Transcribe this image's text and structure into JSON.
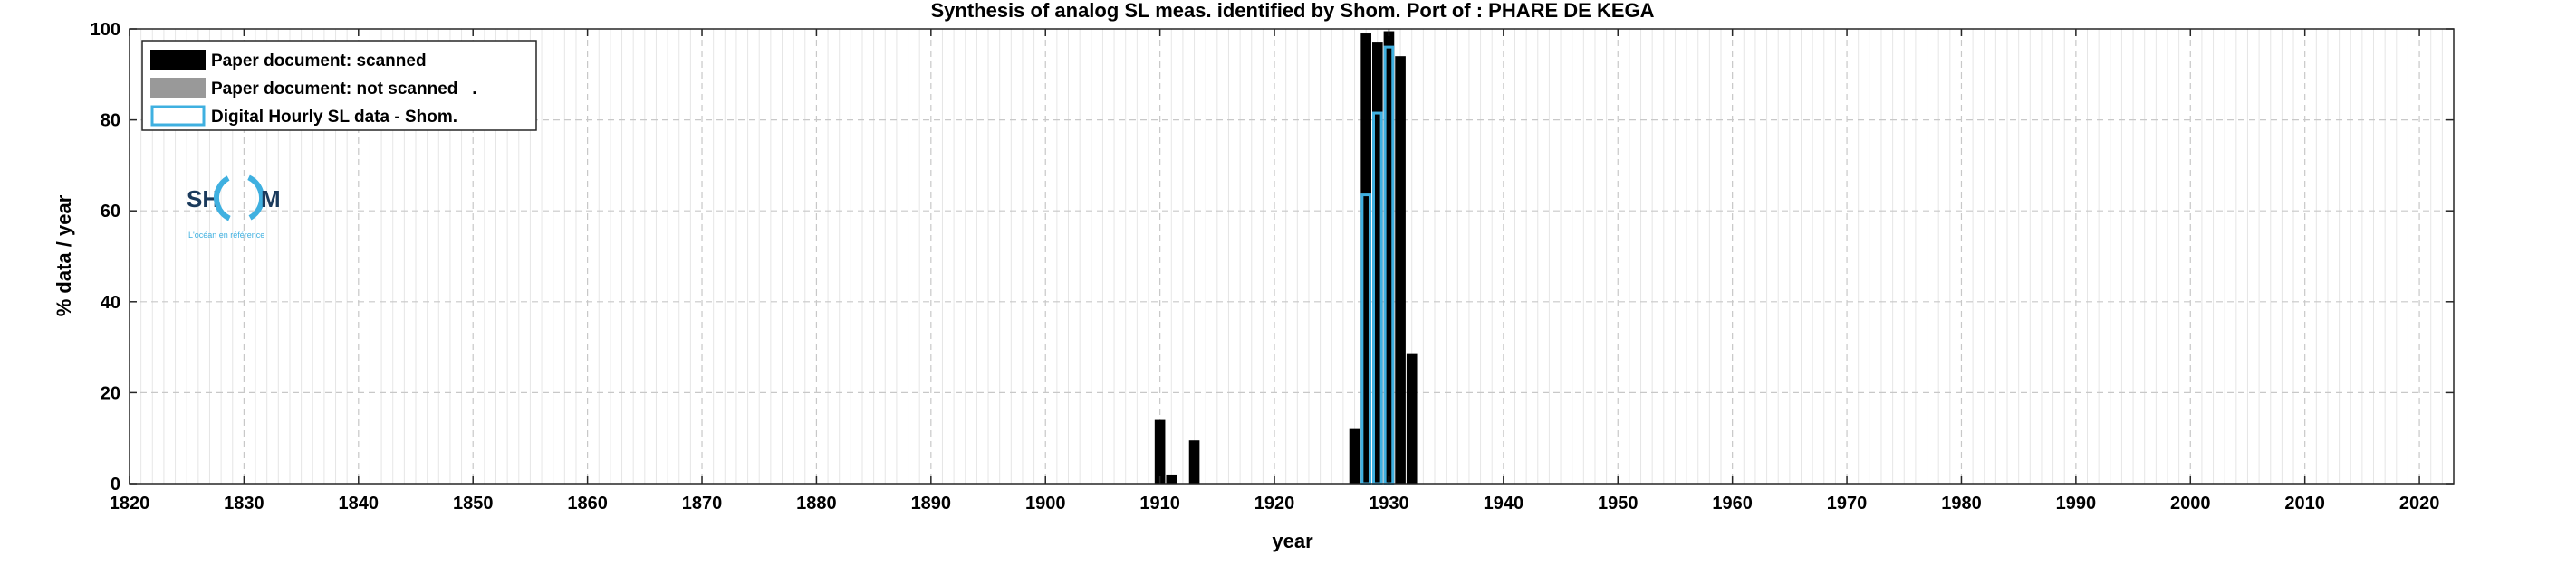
{
  "chart_data": {
    "type": "bar",
    "title": "Synthesis of analog SL meas. identified by Shom. Port of : PHARE DE KEGA",
    "xlabel": "year",
    "ylabel": "% data / year",
    "xlim": [
      1820,
      2023
    ],
    "ylim": [
      0,
      100
    ],
    "x_ticks": [
      1820,
      1830,
      1840,
      1850,
      1860,
      1870,
      1880,
      1890,
      1900,
      1910,
      1920,
      1930,
      1940,
      1950,
      1960,
      1970,
      1980,
      1990,
      2000,
      2010,
      2020
    ],
    "y_ticks": [
      0,
      20,
      40,
      60,
      80,
      100
    ],
    "grid": true,
    "legend_position": "top-left",
    "series": [
      {
        "name": "Paper document: scanned",
        "style": "filled",
        "color": "#000000",
        "x": [
          1910,
          1911,
          1913,
          1927,
          1928,
          1929,
          1930,
          1931,
          1932
        ],
        "values": [
          14,
          2,
          9.5,
          12,
          99,
          97,
          99.5,
          94,
          28.5
        ]
      },
      {
        "name": "Paper document: not scanned",
        "style": "filled",
        "color": "#999999",
        "x": [],
        "values": []
      },
      {
        "name": "Digital Hourly SL data - Shom.",
        "style": "outline",
        "color": "#3fb0e0",
        "x": [
          1928,
          1929,
          1930
        ],
        "values": [
          63.5,
          81.5,
          96
        ]
      }
    ],
    "legend": [
      {
        "label": "Paper document: scanned",
        "style": "filled",
        "color": "#000000"
      },
      {
        "label": "Paper document: not scanned   .",
        "style": "filled",
        "color": "#999999"
      },
      {
        "label": "Digital Hourly SL data - Shom.",
        "style": "outline",
        "color": "#3fb0e0"
      }
    ]
  },
  "logo": {
    "text_left": "SH",
    "text_right": "M",
    "tagline": "L'océan en référence",
    "ring_color": "#3fb0e0",
    "text_color": "#1a3a5c"
  }
}
